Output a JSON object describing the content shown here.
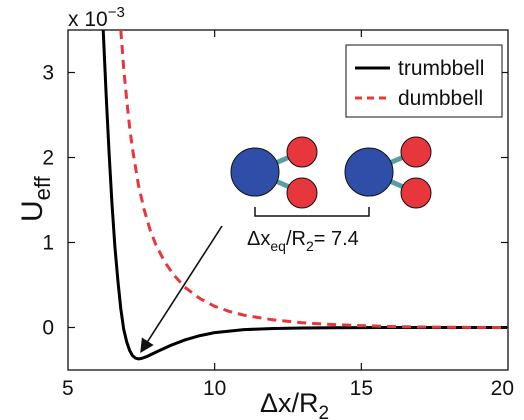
{
  "chart_data": {
    "type": "line",
    "xlabel": {
      "main": "Δx/R",
      "sub": "2"
    },
    "ylabel": {
      "main": "U",
      "sub": "eff"
    },
    "scale_factor": {
      "prefix": "x 10",
      "exponent": "−3"
    },
    "xlim": [
      5,
      20
    ],
    "ylim": [
      -0.5,
      3.5
    ],
    "x_ticks": [
      "5",
      "10",
      "15",
      "20"
    ],
    "y_ticks": [
      "0",
      "1",
      "2",
      "3"
    ],
    "legend_position": "top-right",
    "grid": false,
    "series": [
      {
        "name": "trumbbell",
        "color": "#000000",
        "style": "solid",
        "x": [
          6.2,
          6.3,
          6.4,
          6.5,
          6.6,
          6.7,
          6.8,
          6.9,
          7.0,
          7.1,
          7.2,
          7.3,
          7.4,
          7.5,
          7.7,
          8.0,
          8.5,
          9.0,
          9.5,
          10.0,
          11.0,
          12.0,
          13.0,
          14.0,
          15.0,
          16.0,
          17.0,
          18.0,
          19.0,
          20.0
        ],
        "y": [
          3.5,
          2.75,
          2.05,
          1.45,
          0.95,
          0.55,
          0.22,
          -0.02,
          -0.17,
          -0.27,
          -0.33,
          -0.36,
          -0.37,
          -0.365,
          -0.34,
          -0.29,
          -0.21,
          -0.145,
          -0.095,
          -0.06,
          -0.025,
          -0.012,
          -0.006,
          -0.003,
          -0.001,
          0.0,
          0.0,
          0.0,
          0.0,
          0.0
        ]
      },
      {
        "name": "dumbbell",
        "color": "#e8373c",
        "style": "dashed",
        "x": [
          6.8,
          6.9,
          7.0,
          7.1,
          7.2,
          7.4,
          7.6,
          7.8,
          8.0,
          8.3,
          8.6,
          9.0,
          9.5,
          10.0,
          10.5,
          11.0,
          12.0,
          13.0,
          14.0,
          15.0,
          16.0,
          17.0,
          18.0,
          19.0,
          20.0
        ],
        "y": [
          3.5,
          3.05,
          2.68,
          2.36,
          2.1,
          1.68,
          1.38,
          1.15,
          0.97,
          0.77,
          0.62,
          0.47,
          0.34,
          0.25,
          0.19,
          0.145,
          0.09,
          0.055,
          0.035,
          0.022,
          0.012,
          0.006,
          0.003,
          0.001,
          0.0
        ]
      }
    ],
    "annotation": {
      "text_main": "Δx",
      "text_sub": "eq",
      "text_mid": "/R",
      "text_sub2": "2",
      "text_end": "= 7.4",
      "arrow_target": [
        7.5,
        -0.28
      ]
    },
    "molecule_colors": {
      "large": "#2f4ea8",
      "small": "#e8373c",
      "bond": "#5a9ea3"
    }
  }
}
